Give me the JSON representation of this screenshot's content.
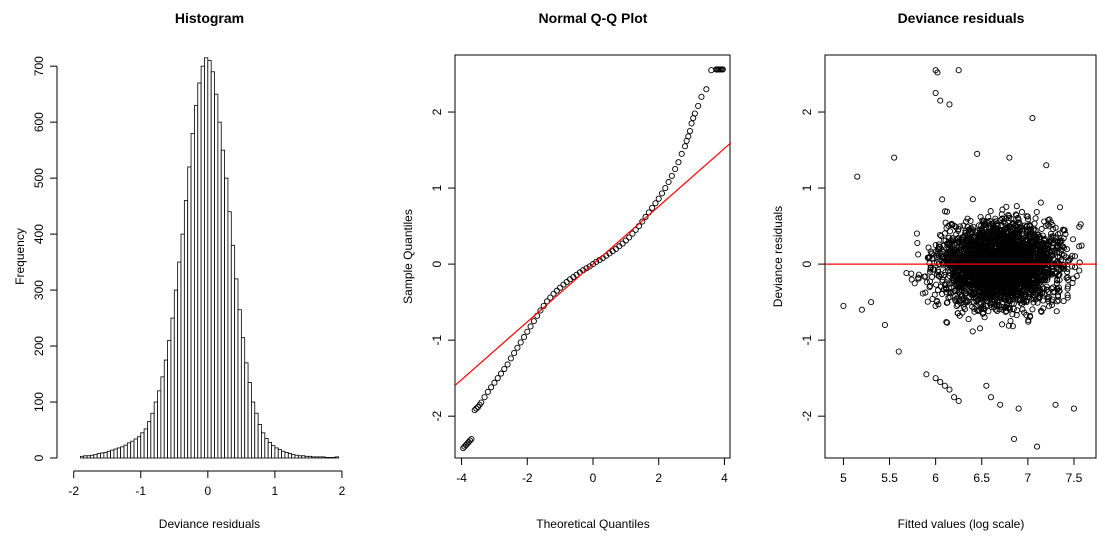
{
  "chart_data": [
    {
      "type": "bar",
      "title": "Histogram",
      "xlabel": "Deviance residuals",
      "ylabel": "Frequency",
      "bin_width": 0.05,
      "bin_start": -1.9,
      "values": [
        3,
        4,
        4,
        5,
        6,
        8,
        9,
        10,
        12,
        14,
        16,
        18,
        20,
        23,
        27,
        30,
        34,
        38,
        45,
        52,
        65,
        80,
        100,
        120,
        145,
        175,
        210,
        250,
        300,
        350,
        400,
        460,
        520,
        580,
        630,
        670,
        700,
        715,
        710,
        690,
        650,
        600,
        550,
        500,
        440,
        380,
        320,
        265,
        215,
        170,
        135,
        100,
        80,
        60,
        45,
        35,
        28,
        22,
        18,
        15,
        12,
        10,
        8,
        6,
        5,
        4,
        4,
        3,
        3,
        2,
        2,
        2,
        2,
        1,
        1,
        1,
        2
      ],
      "xlim": [
        -2.1,
        2.15
      ],
      "ylim": [
        0,
        720
      ],
      "xticks": [
        -2,
        -1,
        0,
        1,
        2
      ],
      "yticks": [
        0,
        100,
        200,
        300,
        400,
        500,
        600,
        700
      ]
    },
    {
      "type": "scatter",
      "title": "Normal Q-Q Plot",
      "xlabel": "Theoretical Quantiles",
      "ylabel": "Sample Quantiles",
      "xlim": [
        -4.2,
        4.2
      ],
      "ylim": [
        -2.55,
        2.75
      ],
      "xticks": [
        -4,
        -2,
        0,
        2,
        4
      ],
      "yticks": [
        -2,
        -1,
        0,
        1,
        2
      ],
      "reference_line": {
        "intercept": 0.0,
        "slope": 0.38,
        "color": "#ff0000"
      },
      "x": [
        -3.95,
        -3.7,
        -3.6,
        -3.55,
        -3.5,
        -3.45,
        -3.4,
        -3.3,
        -3.2,
        -3.1,
        -3.0,
        -2.9,
        -2.8,
        -2.7,
        -2.6,
        -2.5,
        -2.4,
        -2.3,
        -2.2,
        -2.1,
        -2.0,
        -1.9,
        -1.8,
        -1.7,
        -1.6,
        -1.5,
        -1.4,
        -1.3,
        -1.2,
        -1.1,
        -1.0,
        -0.9,
        -0.8,
        -0.7,
        -0.6,
        -0.5,
        -0.4,
        -0.3,
        -0.2,
        -0.1,
        0.0,
        0.1,
        0.2,
        0.3,
        0.4,
        0.5,
        0.6,
        0.7,
        0.8,
        0.9,
        1.0,
        1.1,
        1.2,
        1.3,
        1.4,
        1.5,
        1.6,
        1.7,
        1.8,
        1.9,
        2.0,
        2.1,
        2.2,
        2.3,
        2.4,
        2.5,
        2.6,
        2.7,
        2.8,
        2.85,
        2.9,
        2.95,
        3.0,
        3.05,
        3.1,
        3.2,
        3.3,
        3.45,
        3.6,
        3.75,
        3.95
      ],
      "y": [
        -2.42,
        -2.3,
        -1.92,
        -1.9,
        -1.88,
        -1.85,
        -1.82,
        -1.75,
        -1.68,
        -1.62,
        -1.56,
        -1.5,
        -1.44,
        -1.38,
        -1.32,
        -1.24,
        -1.17,
        -1.1,
        -1.03,
        -0.96,
        -0.89,
        -0.82,
        -0.75,
        -0.68,
        -0.61,
        -0.55,
        -0.49,
        -0.44,
        -0.39,
        -0.35,
        -0.31,
        -0.27,
        -0.235,
        -0.2,
        -0.17,
        -0.14,
        -0.11,
        -0.08,
        -0.055,
        -0.03,
        0.0,
        0.03,
        0.055,
        0.08,
        0.11,
        0.14,
        0.17,
        0.2,
        0.235,
        0.27,
        0.31,
        0.35,
        0.4,
        0.45,
        0.5,
        0.56,
        0.62,
        0.68,
        0.74,
        0.8,
        0.86,
        0.93,
        1.0,
        1.08,
        1.16,
        1.25,
        1.34,
        1.45,
        1.55,
        1.62,
        1.68,
        1.75,
        1.85,
        1.92,
        1.98,
        2.08,
        2.2,
        2.3,
        2.55,
        2.56,
        2.56
      ]
    },
    {
      "type": "scatter",
      "title": "Deviance residuals",
      "xlabel": "Fitted values (log scale)",
      "ylabel": "Deviance residuals",
      "xlim": [
        4.8,
        7.75
      ],
      "ylim": [
        -2.55,
        2.75
      ],
      "xticks": [
        5.0,
        5.5,
        6.0,
        6.5,
        7.0,
        7.5
      ],
      "yticks": [
        -2,
        -1,
        0,
        1,
        2
      ],
      "reference_line": {
        "intercept": 0,
        "slope": 0,
        "color": "#ff0000"
      },
      "cloud": {
        "x_center": 6.7,
        "x_spread": 0.45,
        "y_center": 0.0,
        "y_spread": 0.35,
        "count": 3000
      },
      "points": [
        [
          6.0,
          2.55
        ],
        [
          6.02,
          2.52
        ],
        [
          6.25,
          2.55
        ],
        [
          6.0,
          2.25
        ],
        [
          6.05,
          2.15
        ],
        [
          6.15,
          2.1
        ],
        [
          7.05,
          1.92
        ],
        [
          6.45,
          1.45
        ],
        [
          5.55,
          1.4
        ],
        [
          5.15,
          1.15
        ],
        [
          7.2,
          1.3
        ],
        [
          6.8,
          1.4
        ],
        [
          6.85,
          -2.3
        ],
        [
          7.1,
          -2.4
        ],
        [
          7.5,
          -1.9
        ],
        [
          7.3,
          -1.85
        ],
        [
          6.9,
          -1.9
        ],
        [
          6.7,
          -1.85
        ],
        [
          6.55,
          -1.6
        ],
        [
          6.6,
          -1.75
        ],
        [
          5.9,
          -1.45
        ],
        [
          6.0,
          -1.5
        ],
        [
          6.05,
          -1.55
        ],
        [
          6.1,
          -1.6
        ],
        [
          6.15,
          -1.65
        ],
        [
          6.2,
          -1.75
        ],
        [
          6.25,
          -1.8
        ],
        [
          5.6,
          -1.15
        ],
        [
          5.45,
          -0.8
        ],
        [
          5.0,
          -0.55
        ],
        [
          5.2,
          -0.6
        ],
        [
          5.3,
          -0.5
        ]
      ]
    }
  ],
  "colors": {
    "reference_line": "#ff0000",
    "ink": "#000000"
  }
}
